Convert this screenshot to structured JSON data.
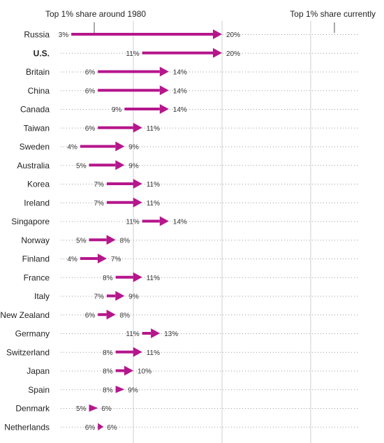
{
  "chart_data": {
    "type": "arrow",
    "header_left": "Top 1% share around 1980",
    "header_right": "Top 1% share currently",
    "highlight_country": "U.S.",
    "accent_color": "#b5168c",
    "grid_color": "#cfcfcf",
    "grid_values": [
      10,
      20,
      30
    ],
    "xlim": [
      0,
      40
    ],
    "rows": [
      {
        "country": "Russia",
        "start": 3,
        "end": 20,
        "start_label": "3%",
        "end_label": "20%"
      },
      {
        "country": "U.S.",
        "start": 11,
        "end": 20,
        "start_label": "11%",
        "end_label": "20%"
      },
      {
        "country": "Britain",
        "start": 6,
        "end": 14,
        "start_label": "6%",
        "end_label": "14%"
      },
      {
        "country": "China",
        "start": 6,
        "end": 14,
        "start_label": "6%",
        "end_label": "14%"
      },
      {
        "country": "Canada",
        "start": 9,
        "end": 14,
        "start_label": "9%",
        "end_label": "14%"
      },
      {
        "country": "Taiwan",
        "start": 6,
        "end": 11,
        "start_label": "6%",
        "end_label": "11%"
      },
      {
        "country": "Sweden",
        "start": 4,
        "end": 9,
        "start_label": "4%",
        "end_label": "9%"
      },
      {
        "country": "Australia",
        "start": 5,
        "end": 9,
        "start_label": "5%",
        "end_label": "9%"
      },
      {
        "country": "Korea",
        "start": 7,
        "end": 11,
        "start_label": "7%",
        "end_label": "11%"
      },
      {
        "country": "Ireland",
        "start": 7,
        "end": 11,
        "start_label": "7%",
        "end_label": "11%"
      },
      {
        "country": "Singapore",
        "start": 11,
        "end": 14,
        "start_label": "11%",
        "end_label": "14%"
      },
      {
        "country": "Norway",
        "start": 5,
        "end": 8,
        "start_label": "5%",
        "end_label": "8%"
      },
      {
        "country": "Finland",
        "start": 4,
        "end": 7,
        "start_label": "4%",
        "end_label": "7%"
      },
      {
        "country": "France",
        "start": 8,
        "end": 11,
        "start_label": "8%",
        "end_label": "11%"
      },
      {
        "country": "Italy",
        "start": 7,
        "end": 9,
        "start_label": "7%",
        "end_label": "9%"
      },
      {
        "country": "New Zealand",
        "start": 6,
        "end": 8,
        "start_label": "6%",
        "end_label": "8%"
      },
      {
        "country": "Germany",
        "start": 11,
        "end": 13,
        "start_label": "11%",
        "end_label": "13%"
      },
      {
        "country": "Switzerland",
        "start": 8,
        "end": 11,
        "start_label": "8%",
        "end_label": "11%"
      },
      {
        "country": "Japan",
        "start": 8,
        "end": 10,
        "start_label": "8%",
        "end_label": "10%"
      },
      {
        "country": "Spain",
        "start": 8,
        "end": 9,
        "start_label": "8%",
        "end_label": "9%"
      },
      {
        "country": "Denmark",
        "start": 5,
        "end": 6,
        "start_label": "5%",
        "end_label": "6%"
      },
      {
        "country": "Netherlands",
        "start": 6,
        "end": 6,
        "start_label": "6%",
        "end_label": "6%"
      }
    ]
  }
}
